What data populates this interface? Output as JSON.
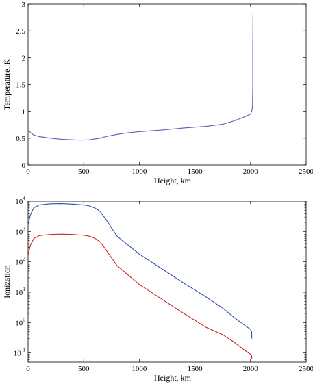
{
  "chart_data": [
    {
      "type": "line",
      "xlabel": "Height, km",
      "ylabel": "Temperature, K",
      "xlim": [
        0,
        2500
      ],
      "ylim": [
        0,
        3
      ],
      "xticks": [
        0,
        500,
        1000,
        1500,
        2000,
        2500
      ],
      "yticks": [
        0,
        0.5,
        1,
        1.5,
        2,
        2.5,
        3
      ],
      "ytick_labels": [
        "0",
        "0.5",
        "1",
        "1.5",
        "2",
        "2.5",
        "3"
      ],
      "scale": "linear",
      "grid": false,
      "series": [
        {
          "color": "#5060c0",
          "x": [
            0,
            25,
            50,
            100,
            200,
            300,
            400,
            450,
            500,
            550,
            650,
            700,
            800,
            900,
            1000,
            1200,
            1400,
            1600,
            1750,
            1850,
            1950,
            2000,
            2010,
            2015,
            2018,
            2020,
            2020,
            2022
          ],
          "y": [
            0.65,
            0.6,
            0.56,
            0.53,
            0.5,
            0.48,
            0.47,
            0.465,
            0.465,
            0.47,
            0.5,
            0.53,
            0.57,
            0.6,
            0.62,
            0.65,
            0.69,
            0.72,
            0.76,
            0.82,
            0.9,
            0.95,
            1.0,
            1.05,
            1.1,
            1.5,
            2.1,
            2.8
          ]
        }
      ]
    },
    {
      "type": "line",
      "xlabel": "Height, km",
      "ylabel": "Ionization",
      "xlim": [
        0,
        2500
      ],
      "ylim": [
        0.05,
        10000
      ],
      "xticks": [
        0,
        500,
        1000,
        1500,
        2000,
        2500
      ],
      "yticks": [
        0.1,
        1,
        10,
        100,
        1000,
        10000
      ],
      "ytick_labels": [
        {
          "base": "10",
          "exp": "-1"
        },
        {
          "base": "10",
          "exp": "0"
        },
        {
          "base": "10",
          "exp": "1"
        },
        {
          "base": "10",
          "exp": "2"
        },
        {
          "base": "10",
          "exp": "3"
        },
        {
          "base": "10",
          "exp": "4"
        }
      ],
      "scale": "log",
      "grid": false,
      "series": [
        {
          "color": "#3050a8",
          "x": [
            0,
            20,
            50,
            100,
            200,
            300,
            400,
            500,
            550,
            600,
            650,
            700,
            800,
            1000,
            1200,
            1400,
            1600,
            1750,
            1850,
            1950,
            2000,
            2010,
            2012
          ],
          "y": [
            1600,
            3500,
            6000,
            7500,
            8200,
            8300,
            8000,
            7500,
            7000,
            6000,
            4500,
            2500,
            700,
            180,
            60,
            20,
            7,
            3,
            1.5,
            0.8,
            0.6,
            0.5,
            0.3
          ]
        },
        {
          "color": "#d02020",
          "x": [
            0,
            20,
            50,
            100,
            200,
            300,
            400,
            500,
            550,
            600,
            650,
            700,
            800,
            1000,
            1200,
            1400,
            1600,
            1750,
            1850,
            1950,
            2000,
            2010,
            2012
          ],
          "y": [
            160,
            350,
            580,
            730,
            800,
            820,
            800,
            750,
            700,
            600,
            450,
            250,
            75,
            18,
            6,
            2,
            0.7,
            0.4,
            0.23,
            0.12,
            0.09,
            0.08,
            0.065
          ]
        }
      ]
    }
  ]
}
